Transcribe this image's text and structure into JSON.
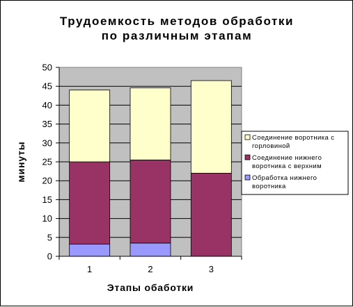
{
  "chart_data": {
    "type": "bar",
    "stacked": true,
    "title_lines": [
      "Трудоемкость методов обработки",
      "по различным этапам"
    ],
    "xlabel": "Этапы обаботки",
    "ylabel": "минуты",
    "categories": [
      "1",
      "2",
      "3"
    ],
    "ylim": [
      0,
      50
    ],
    "yticks": [
      0,
      5,
      10,
      15,
      20,
      25,
      30,
      35,
      40,
      45,
      50
    ],
    "grid": true,
    "legend_position": "right",
    "series": [
      {
        "name": "Обработка нижнего воротника",
        "name_lines": [
          "Обработка нижнего",
          "воротника"
        ],
        "values": [
          3.2,
          3.5,
          0
        ],
        "color": "#9999ff"
      },
      {
        "name": "Соединение нижнего воротника с верхним",
        "name_lines": [
          "Соединение нижнего",
          "воротника с верхним"
        ],
        "values": [
          21.8,
          22.0,
          22.0
        ],
        "color": "#993366"
      },
      {
        "name": "Соединение воротника с горловиной",
        "name_lines": [
          "Соединение воротника с",
          "горловиной"
        ],
        "values": [
          19.0,
          19.1,
          24.5
        ],
        "color": "#ffffcc"
      }
    ]
  }
}
